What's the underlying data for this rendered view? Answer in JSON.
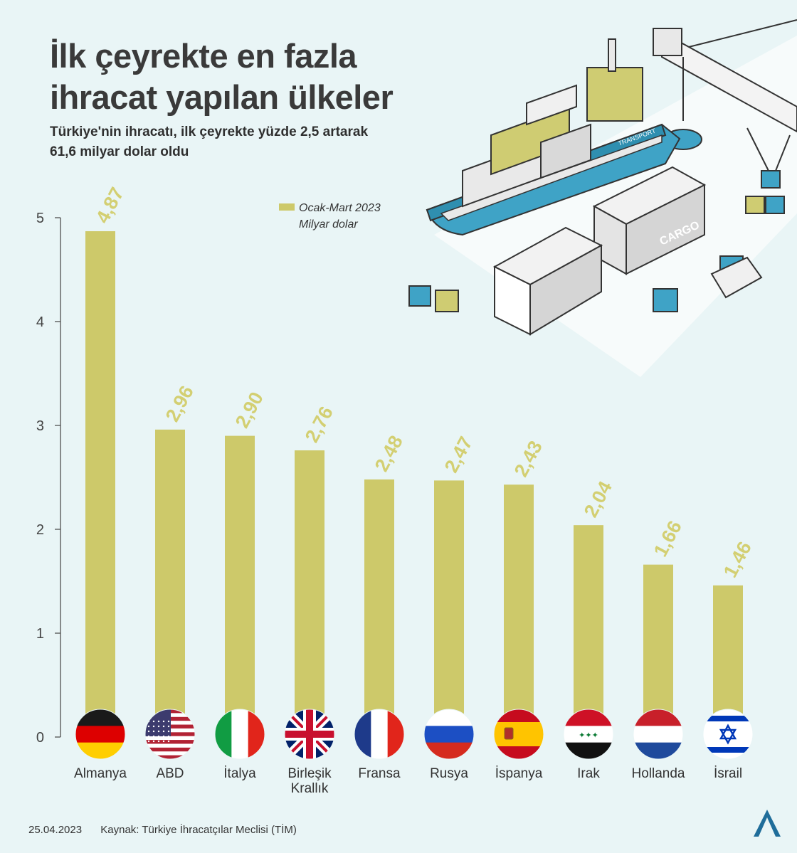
{
  "title_lines": [
    "İlk çeyrekte en fazla",
    "ihracat yapılan ülkeler"
  ],
  "subtitle_lines": [
    "Türkiye'nin ihracatı, ilk çeyrekte yüzde 2,5 artarak",
    "61,6 milyar dolar oldu"
  ],
  "legend": [
    "Ocak-Mart 2023",
    "Milyar dolar"
  ],
  "footer": {
    "date": "25.04.2023",
    "source": "Kaynak: Türkiye İhracatçılar Meclisi (TİM)"
  },
  "colors": {
    "bar": "#cdc96a",
    "label": "#d3cf72",
    "axis": "#444444",
    "background": "#e9f5f6"
  },
  "chart_data": {
    "type": "bar",
    "title": "İlk çeyrekte en fazla ihracat yapılan ülkeler",
    "series_name": "Ocak-Mart 2023",
    "unit": "Milyar dolar",
    "categories": [
      "Almanya",
      "ABD",
      "İtalya",
      "Birleşik Krallık",
      "Fransa",
      "Rusya",
      "İspanya",
      "Irak",
      "Hollanda",
      "İsrail"
    ],
    "category_lines": [
      [
        "Almanya"
      ],
      [
        "ABD"
      ],
      [
        "İtalya"
      ],
      [
        "Birleşik",
        "Krallık"
      ],
      [
        "Fransa"
      ],
      [
        "Rusya"
      ],
      [
        "İspanya"
      ],
      [
        "Irak"
      ],
      [
        "Hollanda"
      ],
      [
        "İsrail"
      ]
    ],
    "values": [
      4.87,
      2.96,
      2.9,
      2.76,
      2.48,
      2.47,
      2.43,
      2.04,
      1.66,
      1.46
    ],
    "value_labels": [
      "4,87",
      "2,96",
      "2,90",
      "2,76",
      "2,48",
      "2,47",
      "2,43",
      "2,04",
      "1,66",
      "1,46"
    ],
    "flags": [
      "germany-flag",
      "usa-flag",
      "italy-flag",
      "uk-flag",
      "france-flag",
      "russia-flag",
      "spain-flag",
      "iraq-flag",
      "netherlands-flag",
      "israel-flag"
    ],
    "yticks": [
      "0",
      "1",
      "2",
      "3",
      "4",
      "5"
    ],
    "ylim": [
      0,
      5
    ],
    "xlabel": "",
    "ylabel": ""
  }
}
